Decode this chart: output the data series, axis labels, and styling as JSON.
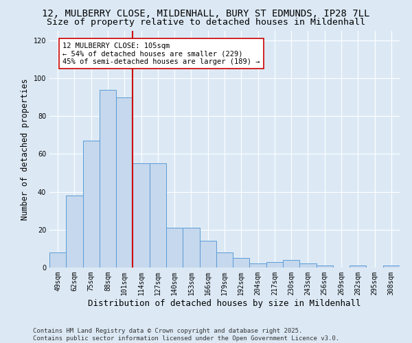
{
  "title_line1": "12, MULBERRY CLOSE, MILDENHALL, BURY ST EDMUNDS, IP28 7LL",
  "title_line2": "Size of property relative to detached houses in Mildenhall",
  "xlabel": "Distribution of detached houses by size in Mildenhall",
  "ylabel": "Number of detached properties",
  "categories": [
    "49sqm",
    "62sqm",
    "75sqm",
    "88sqm",
    "101sqm",
    "114sqm",
    "127sqm",
    "140sqm",
    "153sqm",
    "166sqm",
    "179sqm",
    "192sqm",
    "204sqm",
    "217sqm",
    "230sqm",
    "243sqm",
    "256sqm",
    "269sqm",
    "282sqm",
    "295sqm",
    "308sqm"
  ],
  "values": [
    8,
    38,
    67,
    94,
    90,
    55,
    55,
    21,
    21,
    14,
    8,
    5,
    2,
    3,
    4,
    2,
    1,
    0,
    1,
    0,
    1
  ],
  "bar_color": "#c5d8ed",
  "bar_edge_color": "#5b9bd5",
  "vline_x_index": 4,
  "vline_color": "#cc0000",
  "annotation_text": "12 MULBERRY CLOSE: 105sqm\n← 54% of detached houses are smaller (229)\n45% of semi-detached houses are larger (189) →",
  "annotation_box_facecolor": "#ffffff",
  "annotation_box_edgecolor": "#cc0000",
  "ylim": [
    0,
    125
  ],
  "yticks": [
    0,
    20,
    40,
    60,
    80,
    100,
    120
  ],
  "background_color": "#dce9f5",
  "plot_bg_color": "#dce9f5",
  "footer": "Contains HM Land Registry data © Crown copyright and database right 2025.\nContains public sector information licensed under the Open Government Licence v3.0.",
  "title_fontsize": 10,
  "subtitle_fontsize": 9.5,
  "xlabel_fontsize": 9,
  "ylabel_fontsize": 8.5,
  "tick_fontsize": 7,
  "annotation_fontsize": 7.5,
  "footer_fontsize": 6.5
}
